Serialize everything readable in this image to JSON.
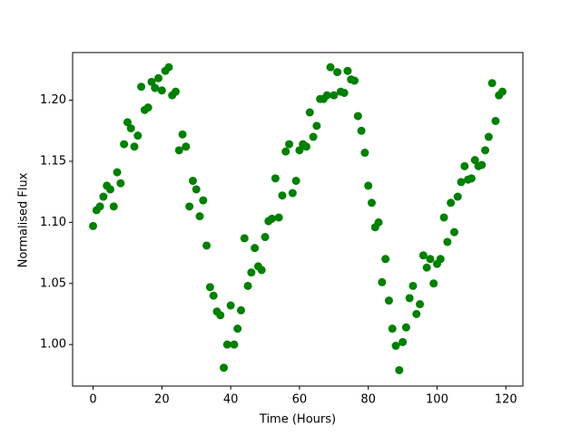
{
  "chart_data": {
    "type": "scatter",
    "xlabel": "Time (Hours)",
    "ylabel": "Normalised Flux",
    "color": "#008000",
    "x": [
      0,
      1,
      2,
      3,
      4,
      5,
      6,
      7,
      8,
      9,
      10,
      11,
      12,
      13,
      14,
      15,
      16,
      17,
      18,
      19,
      20,
      21,
      22,
      23,
      24,
      25,
      26,
      27,
      28,
      29,
      30,
      31,
      32,
      33,
      34,
      35,
      36,
      37,
      38,
      39,
      40,
      41,
      42,
      43,
      44,
      45,
      46,
      47,
      48,
      49,
      50,
      51,
      52,
      53,
      54,
      55,
      56,
      57,
      58,
      59,
      60,
      61,
      62,
      63,
      64,
      65,
      66,
      67,
      68,
      69,
      70,
      71,
      72,
      73,
      74,
      75,
      76,
      77,
      78,
      79,
      80,
      81,
      82,
      83,
      84,
      85,
      86,
      87,
      88,
      89,
      90,
      91,
      92,
      93,
      94,
      95,
      96,
      97,
      98,
      99,
      100,
      101,
      102,
      103,
      104,
      105,
      106,
      107,
      108,
      109,
      110,
      111,
      112,
      113,
      114,
      115,
      116,
      117,
      118,
      119
    ],
    "y": [
      1.097,
      1.11,
      1.113,
      1.121,
      1.13,
      1.127,
      1.113,
      1.141,
      1.132,
      1.164,
      1.182,
      1.177,
      1.162,
      1.171,
      1.211,
      1.192,
      1.194,
      1.215,
      1.21,
      1.218,
      1.208,
      1.224,
      1.227,
      1.204,
      1.207,
      1.159,
      1.172,
      1.162,
      1.113,
      1.134,
      1.127,
      1.105,
      1.118,
      1.081,
      1.047,
      1.04,
      1.027,
      1.024,
      0.981,
      1.0,
      1.032,
      1.0,
      1.013,
      1.028,
      1.087,
      1.048,
      1.059,
      1.079,
      1.064,
      1.061,
      1.088,
      1.101,
      1.103,
      1.136,
      1.104,
      1.122,
      1.158,
      1.164,
      1.124,
      1.134,
      1.159,
      1.164,
      1.162,
      1.19,
      1.17,
      1.179,
      1.201,
      1.201,
      1.204,
      1.227,
      1.204,
      1.223,
      1.207,
      1.206,
      1.224,
      1.217,
      1.216,
      1.187,
      1.175,
      1.157,
      1.13,
      1.116,
      1.096,
      1.1,
      1.051,
      1.07,
      1.036,
      1.013,
      0.999,
      0.979,
      1.002,
      1.014,
      1.038,
      1.048,
      1.025,
      1.033,
      1.073,
      1.063,
      1.07,
      1.05,
      1.066,
      1.07,
      1.104,
      1.084,
      1.116,
      1.092,
      1.121,
      1.133,
      1.146,
      1.135,
      1.136,
      1.151,
      1.146,
      1.147,
      1.159,
      1.17,
      1.214,
      1.183,
      1.204,
      1.207
    ],
    "xlim": [
      -5.95,
      124.95
    ],
    "ylim": [
      0.966,
      1.239
    ],
    "xticks": [
      0,
      20,
      40,
      60,
      80,
      100,
      120
    ],
    "yticks": [
      {
        "value": 1,
        "label": "1.00"
      },
      1.05,
      {
        "value": 1.1,
        "label": "1.10"
      },
      1.15,
      {
        "value": 1.2,
        "label": "1.20"
      }
    ]
  }
}
